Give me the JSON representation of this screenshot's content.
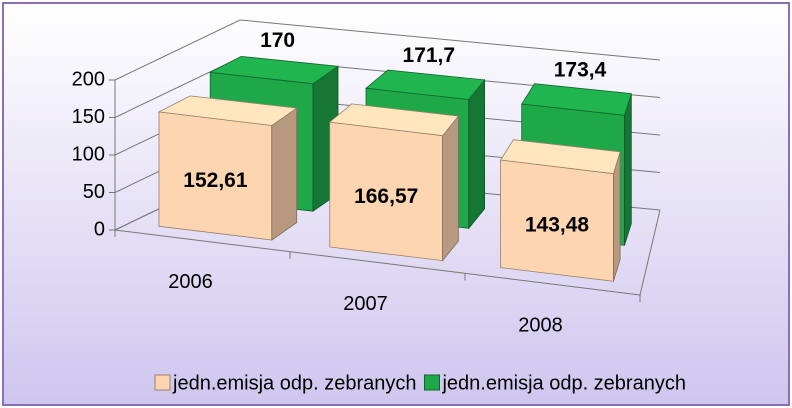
{
  "chart_data": {
    "type": "bar3d",
    "categories": [
      "2006",
      "2007",
      "2008"
    ],
    "series": [
      {
        "name": "jedn.emisja odp. zebranych",
        "color": "#fdd5b1",
        "values": [
          152.61,
          166.57,
          143.48
        ],
        "value_labels": [
          "152,61",
          "166,57",
          "143,48"
        ]
      },
      {
        "name": "jedn.emisja odp. zebranych",
        "color": "#1fa84a",
        "values": [
          170,
          171.7,
          173.4
        ],
        "value_labels": [
          "170",
          "171,7",
          "173,4"
        ]
      }
    ],
    "ylim": [
      0,
      200
    ],
    "yticks": [
      0,
      50,
      100,
      150,
      200
    ],
    "grid": true,
    "legend": "bottom"
  }
}
